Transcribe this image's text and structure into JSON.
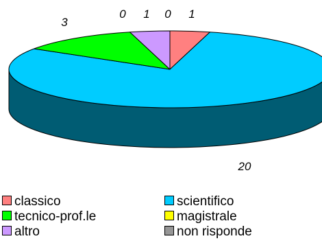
{
  "chart_data": {
    "type": "pie",
    "title": "",
    "style": "3d",
    "categories": [
      "classico",
      "scientifico",
      "tecnico-prof.le",
      "magistrale",
      "altro",
      "non risponde"
    ],
    "values": [
      1,
      20,
      3,
      0,
      1,
      0
    ],
    "colors": [
      "#FF8080",
      "#00CCFF",
      "#00FF00",
      "#FFFF00",
      "#CC99FF",
      "#969696"
    ],
    "legend_position": "bottom",
    "label_text": [
      "1",
      "20",
      "3",
      "0",
      "1",
      "0"
    ]
  }
}
